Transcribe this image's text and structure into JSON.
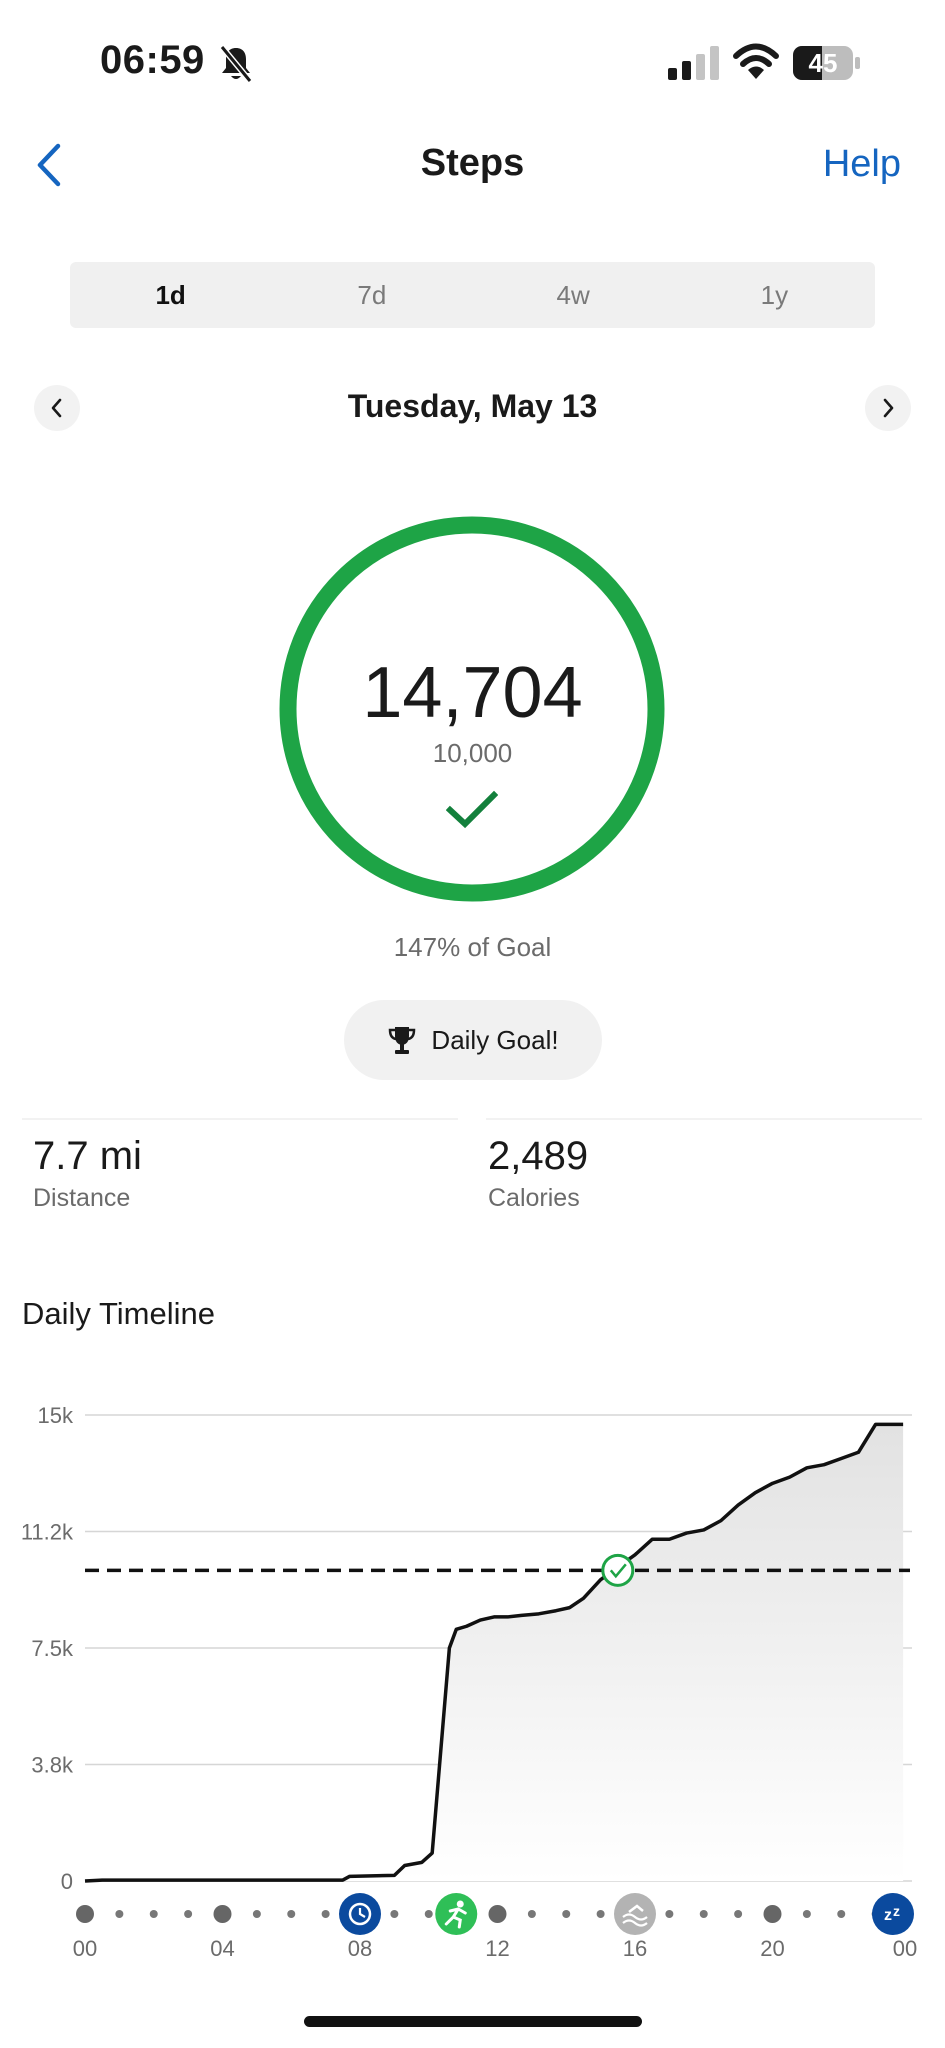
{
  "status_bar": {
    "time": "06:59",
    "battery": "45"
  },
  "nav": {
    "title": "Steps",
    "help_label": "Help"
  },
  "tabs": [
    {
      "label": "1d",
      "active": true
    },
    {
      "label": "7d",
      "active": false
    },
    {
      "label": "4w",
      "active": false
    },
    {
      "label": "1y",
      "active": false
    }
  ],
  "date_label": "Tuesday, May 13",
  "summary": {
    "steps": "14,704",
    "goal": "10,000",
    "percent_label": "147% of Goal",
    "badge_label": "Daily Goal!"
  },
  "stats": {
    "distance_value": "7.7 mi",
    "distance_label": "Distance",
    "calories_value": "2,489",
    "calories_label": "Calories"
  },
  "timeline_title": "Daily Timeline",
  "colors": {
    "accent": "#1565c0",
    "goal_green": "#1ea446",
    "check_green": "#13803c",
    "activity_green": "#2fbf57",
    "navy": "#0b4a9e",
    "gray_marker": "#b3b3b3"
  },
  "chart_data": {
    "type": "area",
    "y_ticks": [
      "0",
      "3.8k",
      "7.5k",
      "11.2k",
      "15k"
    ],
    "ylim": [
      0,
      15000
    ],
    "x_ticks": [
      "00",
      "04",
      "08",
      "12",
      "16",
      "20",
      "00"
    ],
    "xlim": [
      0,
      24
    ],
    "goal_line": 10000,
    "goal_reached_hour": 15.5,
    "series": [
      {
        "x": [
          0,
          0.5,
          7.5,
          7.7,
          9,
          9.3,
          9.8,
          10.1,
          10.6,
          10.8,
          11.1,
          11.5,
          11.9,
          12.3,
          12.7,
          13.2,
          13.7,
          14.1,
          14.5,
          15.0,
          15.5,
          16.0,
          16.5,
          17.0,
          17.5,
          18.0,
          18.5,
          19.0,
          19.5,
          20.0,
          20.5,
          21.0,
          21.5,
          22.0,
          22.5,
          23.0,
          23.8
        ],
        "y": [
          0,
          30,
          30,
          150,
          180,
          500,
          600,
          900,
          7500,
          8100,
          8200,
          8400,
          8500,
          8500,
          8550,
          8600,
          8700,
          8800,
          9100,
          9700,
          10100,
          10500,
          11000,
          11000,
          11200,
          11300,
          11600,
          12100,
          12500,
          12800,
          13000,
          13300,
          13400,
          13600,
          13800,
          14700,
          14700
        ]
      }
    ],
    "activity_markers": [
      {
        "hour": 8,
        "icon": "clock-icon"
      },
      {
        "hour": 10.8,
        "icon": "running-icon"
      },
      {
        "hour": 16,
        "icon": "swim-icon"
      },
      {
        "hour": 24,
        "icon": "sleep-icon"
      }
    ]
  }
}
